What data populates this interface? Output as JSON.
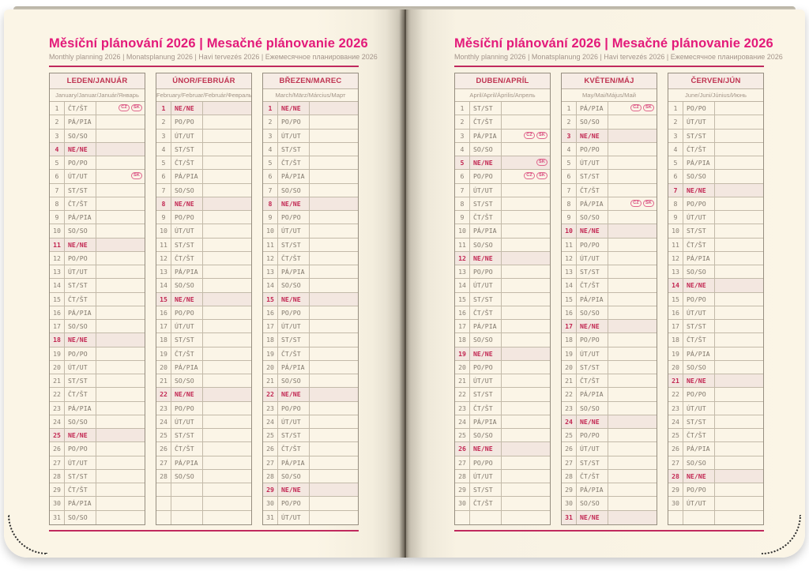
{
  "header": {
    "title": "Měsíční plánování 2026 | Mesačné plánovanie 2026",
    "subtitle": "Monthly planning 2026 | Monatsplanung 2026 | Havi tervezés 2026 | Ежемесячное планирование 2026"
  },
  "colors": {
    "page_cream": "#fbf5e6",
    "title_magenta": "#e31a7a",
    "rule_crimson": "#c02a5e",
    "month_header_red": "#bf3351",
    "sunday_red": "#c22752",
    "sunday_row_bg": "#f3e7e0",
    "day_text_gray": "#81786c",
    "badge_pink": "#d6437a"
  },
  "months": [
    {
      "name": "LEDEN/JANUÁR",
      "subtitle": "January/Januar/Január/Январь",
      "page": "left",
      "empty_rows": 0,
      "days": [
        [
          1,
          "ČT/ŠT",
          0,
          [
            "CZ",
            "SK"
          ]
        ],
        [
          2,
          "PÁ/PIA",
          0
        ],
        [
          3,
          "SO/SO",
          0
        ],
        [
          4,
          "NE/NE",
          1
        ],
        [
          5,
          "PO/PO",
          0
        ],
        [
          6,
          "ÚT/UT",
          0,
          [
            "SK"
          ]
        ],
        [
          7,
          "ST/ST",
          0
        ],
        [
          8,
          "ČT/ŠT",
          0
        ],
        [
          9,
          "PÁ/PIA",
          0
        ],
        [
          10,
          "SO/SO",
          0
        ],
        [
          11,
          "NE/NE",
          1
        ],
        [
          12,
          "PO/PO",
          0
        ],
        [
          13,
          "ÚT/UT",
          0
        ],
        [
          14,
          "ST/ST",
          0
        ],
        [
          15,
          "ČT/ŠT",
          0
        ],
        [
          16,
          "PÁ/PIA",
          0
        ],
        [
          17,
          "SO/SO",
          0
        ],
        [
          18,
          "NE/NE",
          1
        ],
        [
          19,
          "PO/PO",
          0
        ],
        [
          20,
          "ÚT/UT",
          0
        ],
        [
          21,
          "ST/ST",
          0
        ],
        [
          22,
          "ČT/ŠT",
          0
        ],
        [
          23,
          "PÁ/PIA",
          0
        ],
        [
          24,
          "SO/SO",
          0
        ],
        [
          25,
          "NE/NE",
          1
        ],
        [
          26,
          "PO/PO",
          0
        ],
        [
          27,
          "ÚT/UT",
          0
        ],
        [
          28,
          "ST/ST",
          0
        ],
        [
          29,
          "ČT/ŠT",
          0
        ],
        [
          30,
          "PÁ/PIA",
          0
        ],
        [
          31,
          "SO/SO",
          0
        ]
      ]
    },
    {
      "name": "ÚNOR/FEBRUÁR",
      "subtitle": "February/Februar/Február/Февраль",
      "page": "left",
      "empty_rows": 3,
      "days": [
        [
          1,
          "NE/NE",
          1
        ],
        [
          2,
          "PO/PO",
          0
        ],
        [
          3,
          "ÚT/UT",
          0
        ],
        [
          4,
          "ST/ST",
          0
        ],
        [
          5,
          "ČT/ŠT",
          0
        ],
        [
          6,
          "PÁ/PIA",
          0
        ],
        [
          7,
          "SO/SO",
          0
        ],
        [
          8,
          "NE/NE",
          1
        ],
        [
          9,
          "PO/PO",
          0
        ],
        [
          10,
          "ÚT/UT",
          0
        ],
        [
          11,
          "ST/ST",
          0
        ],
        [
          12,
          "ČT/ŠT",
          0
        ],
        [
          13,
          "PÁ/PIA",
          0
        ],
        [
          14,
          "SO/SO",
          0
        ],
        [
          15,
          "NE/NE",
          1
        ],
        [
          16,
          "PO/PO",
          0
        ],
        [
          17,
          "ÚT/UT",
          0
        ],
        [
          18,
          "ST/ST",
          0
        ],
        [
          19,
          "ČT/ŠT",
          0
        ],
        [
          20,
          "PÁ/PIA",
          0
        ],
        [
          21,
          "SO/SO",
          0
        ],
        [
          22,
          "NE/NE",
          1
        ],
        [
          23,
          "PO/PO",
          0
        ],
        [
          24,
          "ÚT/UT",
          0
        ],
        [
          25,
          "ST/ST",
          0
        ],
        [
          26,
          "ČT/ŠT",
          0
        ],
        [
          27,
          "PÁ/PIA",
          0
        ],
        [
          28,
          "SO/SO",
          0
        ]
      ]
    },
    {
      "name": "BŘEZEN/MAREC",
      "subtitle": "March/März/Március/Март",
      "page": "left",
      "empty_rows": 0,
      "days": [
        [
          1,
          "NE/NE",
          1
        ],
        [
          2,
          "PO/PO",
          0
        ],
        [
          3,
          "ÚT/UT",
          0
        ],
        [
          4,
          "ST/ST",
          0
        ],
        [
          5,
          "ČT/ŠT",
          0
        ],
        [
          6,
          "PÁ/PIA",
          0
        ],
        [
          7,
          "SO/SO",
          0
        ],
        [
          8,
          "NE/NE",
          1
        ],
        [
          9,
          "PO/PO",
          0
        ],
        [
          10,
          "ÚT/UT",
          0
        ],
        [
          11,
          "ST/ST",
          0
        ],
        [
          12,
          "ČT/ŠT",
          0
        ],
        [
          13,
          "PÁ/PIA",
          0
        ],
        [
          14,
          "SO/SO",
          0
        ],
        [
          15,
          "NE/NE",
          1
        ],
        [
          16,
          "PO/PO",
          0
        ],
        [
          17,
          "ÚT/UT",
          0
        ],
        [
          18,
          "ST/ST",
          0
        ],
        [
          19,
          "ČT/ŠT",
          0
        ],
        [
          20,
          "PÁ/PIA",
          0
        ],
        [
          21,
          "SO/SO",
          0
        ],
        [
          22,
          "NE/NE",
          1
        ],
        [
          23,
          "PO/PO",
          0
        ],
        [
          24,
          "ÚT/UT",
          0
        ],
        [
          25,
          "ST/ST",
          0
        ],
        [
          26,
          "ČT/ŠT",
          0
        ],
        [
          27,
          "PÁ/PIA",
          0
        ],
        [
          28,
          "SO/SO",
          0
        ],
        [
          29,
          "NE/NE",
          1
        ],
        [
          30,
          "PO/PO",
          0
        ],
        [
          31,
          "ÚT/UT",
          0
        ]
      ]
    },
    {
      "name": "DUBEN/APRÍL",
      "subtitle": "April/April/Április/Апрель",
      "page": "right",
      "empty_rows": 1,
      "days": [
        [
          1,
          "ST/ST",
          0
        ],
        [
          2,
          "ČT/ŠT",
          0
        ],
        [
          3,
          "PÁ/PIA",
          0,
          [
            "CZ",
            "SK"
          ]
        ],
        [
          4,
          "SO/SO",
          0
        ],
        [
          5,
          "NE/NE",
          1,
          [
            "SK"
          ]
        ],
        [
          6,
          "PO/PO",
          0,
          [
            "CZ",
            "SK"
          ]
        ],
        [
          7,
          "ÚT/UT",
          0
        ],
        [
          8,
          "ST/ST",
          0
        ],
        [
          9,
          "ČT/ŠT",
          0
        ],
        [
          10,
          "PÁ/PIA",
          0
        ],
        [
          11,
          "SO/SO",
          0
        ],
        [
          12,
          "NE/NE",
          1
        ],
        [
          13,
          "PO/PO",
          0
        ],
        [
          14,
          "ÚT/UT",
          0
        ],
        [
          15,
          "ST/ST",
          0
        ],
        [
          16,
          "ČT/ŠT",
          0
        ],
        [
          17,
          "PÁ/PIA",
          0
        ],
        [
          18,
          "SO/SO",
          0
        ],
        [
          19,
          "NE/NE",
          1
        ],
        [
          20,
          "PO/PO",
          0
        ],
        [
          21,
          "ÚT/UT",
          0
        ],
        [
          22,
          "ST/ST",
          0
        ],
        [
          23,
          "ČT/ŠT",
          0
        ],
        [
          24,
          "PÁ/PIA",
          0
        ],
        [
          25,
          "SO/SO",
          0
        ],
        [
          26,
          "NE/NE",
          1
        ],
        [
          27,
          "PO/PO",
          0
        ],
        [
          28,
          "ÚT/UT",
          0
        ],
        [
          29,
          "ST/ST",
          0
        ],
        [
          30,
          "ČT/ŠT",
          0
        ]
      ]
    },
    {
      "name": "KVĚTEN/MÁJ",
      "subtitle": "May/Mai/Május/Май",
      "page": "right",
      "empty_rows": 0,
      "days": [
        [
          1,
          "PÁ/PIA",
          0,
          [
            "CZ",
            "SK"
          ]
        ],
        [
          2,
          "SO/SO",
          0
        ],
        [
          3,
          "NE/NE",
          1
        ],
        [
          4,
          "PO/PO",
          0
        ],
        [
          5,
          "ÚT/UT",
          0
        ],
        [
          6,
          "ST/ST",
          0
        ],
        [
          7,
          "ČT/ŠT",
          0
        ],
        [
          8,
          "PÁ/PIA",
          0,
          [
            "CZ",
            "SK"
          ]
        ],
        [
          9,
          "SO/SO",
          0
        ],
        [
          10,
          "NE/NE",
          1
        ],
        [
          11,
          "PO/PO",
          0
        ],
        [
          12,
          "ÚT/UT",
          0
        ],
        [
          13,
          "ST/ST",
          0
        ],
        [
          14,
          "ČT/ŠT",
          0
        ],
        [
          15,
          "PÁ/PIA",
          0
        ],
        [
          16,
          "SO/SO",
          0
        ],
        [
          17,
          "NE/NE",
          1
        ],
        [
          18,
          "PO/PO",
          0
        ],
        [
          19,
          "ÚT/UT",
          0
        ],
        [
          20,
          "ST/ST",
          0
        ],
        [
          21,
          "ČT/ŠT",
          0
        ],
        [
          22,
          "PÁ/PIA",
          0
        ],
        [
          23,
          "SO/SO",
          0
        ],
        [
          24,
          "NE/NE",
          1
        ],
        [
          25,
          "PO/PO",
          0
        ],
        [
          26,
          "ÚT/UT",
          0
        ],
        [
          27,
          "ST/ST",
          0
        ],
        [
          28,
          "ČT/ŠT",
          0
        ],
        [
          29,
          "PÁ/PIA",
          0
        ],
        [
          30,
          "SO/SO",
          0
        ],
        [
          31,
          "NE/NE",
          1
        ]
      ]
    },
    {
      "name": "ČERVEN/JÚN",
      "subtitle": "June/Juni/Június/Июнь",
      "page": "right",
      "empty_rows": 1,
      "days": [
        [
          1,
          "PO/PO",
          0
        ],
        [
          2,
          "ÚT/UT",
          0
        ],
        [
          3,
          "ST/ST",
          0
        ],
        [
          4,
          "ČT/ŠT",
          0
        ],
        [
          5,
          "PÁ/PIA",
          0
        ],
        [
          6,
          "SO/SO",
          0
        ],
        [
          7,
          "NE/NE",
          1
        ],
        [
          8,
          "PO/PO",
          0
        ],
        [
          9,
          "ÚT/UT",
          0
        ],
        [
          10,
          "ST/ST",
          0
        ],
        [
          11,
          "ČT/ŠT",
          0
        ],
        [
          12,
          "PÁ/PIA",
          0
        ],
        [
          13,
          "SO/SO",
          0
        ],
        [
          14,
          "NE/NE",
          1
        ],
        [
          15,
          "PO/PO",
          0
        ],
        [
          16,
          "ÚT/UT",
          0
        ],
        [
          17,
          "ST/ST",
          0
        ],
        [
          18,
          "ČT/ŠT",
          0
        ],
        [
          19,
          "PÁ/PIA",
          0
        ],
        [
          20,
          "SO/SO",
          0
        ],
        [
          21,
          "NE/NE",
          1
        ],
        [
          22,
          "PO/PO",
          0
        ],
        [
          23,
          "ÚT/UT",
          0
        ],
        [
          24,
          "ST/ST",
          0
        ],
        [
          25,
          "ČT/ŠT",
          0
        ],
        [
          26,
          "PÁ/PIA",
          0
        ],
        [
          27,
          "SO/SO",
          0
        ],
        [
          28,
          "NE/NE",
          1
        ],
        [
          29,
          "PO/PO",
          0
        ],
        [
          30,
          "ÚT/UT",
          0
        ]
      ]
    }
  ]
}
